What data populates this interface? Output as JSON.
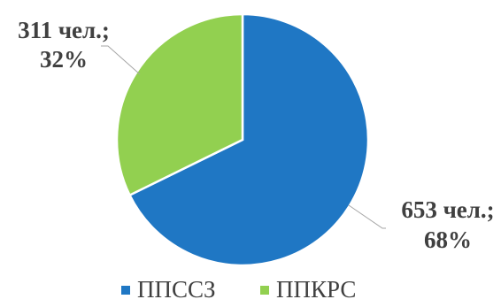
{
  "chart_data": {
    "type": "pie",
    "categories": [
      "ППССЗ",
      "ППКРС"
    ],
    "values": [
      653,
      311
    ],
    "percents": [
      68,
      32
    ],
    "colors": [
      "#1f77c4",
      "#92d050"
    ],
    "data_labels": [
      {
        "line1": "653 чел.;",
        "line2": "68%"
      },
      {
        "line1": "311 чел.;",
        "line2": "32%"
      }
    ],
    "legend": {
      "position": "bottom",
      "items": [
        "ППССЗ",
        "ППКРС"
      ]
    }
  }
}
